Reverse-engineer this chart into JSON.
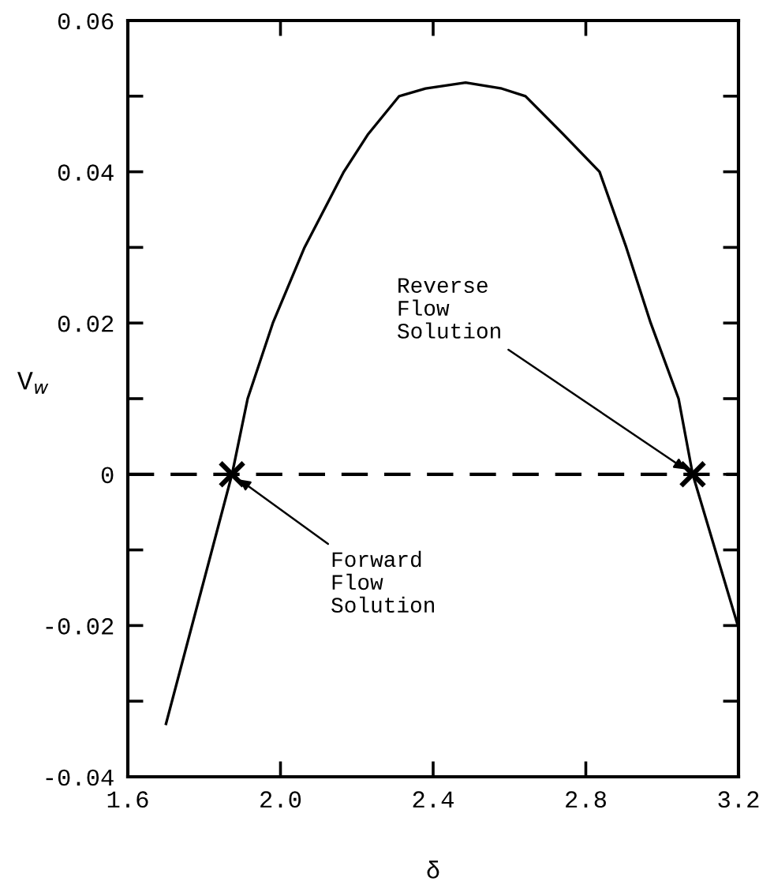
{
  "chart_data": {
    "type": "line",
    "xlabel": "δ",
    "ylabel": "V$_{w}$",
    "series": [
      {
        "color": "#000000",
        "marker": "none",
        "line_style": "solid",
        "x": [
          1.7,
          1.873,
          1.914,
          1.98,
          2.063,
          2.166,
          2.23,
          2.311,
          2.38,
          2.485,
          2.58,
          2.642,
          2.74,
          2.836,
          2.906,
          2.97,
          3.043,
          3.08,
          3.2
        ],
        "values": [
          -0.033,
          0,
          0.01,
          0.02,
          0.03,
          0.04,
          0.045,
          0.05,
          0.051,
          0.0518,
          0.051,
          0.05,
          0.045,
          0.04,
          0.03,
          0.02,
          0.01,
          0,
          -0.0203
        ]
      },
      {
        "type": "scatter",
        "color": "#000000",
        "marker": "cross",
        "x": [
          1.873,
          3.08
        ],
        "values": [
          0,
          0
        ]
      }
    ],
    "ref_lines": [
      {
        "axis": "y",
        "value": 0,
        "line_style": "dashed",
        "color": "#000000"
      }
    ],
    "annotations": [
      {
        "text": "Reverse\nFlow\nSolution",
        "x": 3.08,
        "y": 0
      },
      {
        "text": "Forward\nFlow\nSolution",
        "x": 1.873,
        "y": 0
      }
    ],
    "xlim": [
      1.6,
      3.2
    ],
    "ylim": [
      -0.04,
      0.06
    ],
    "xticks": [
      1.6,
      {
        "value": 2.0,
        "label": "2.0"
      },
      2.4,
      2.8,
      3.2
    ],
    "yticks": [
      {
        "value": -0.04,
        "label": "-0.04"
      },
      {
        "value": -0.03,
        "label": null
      },
      {
        "value": -0.02,
        "label": "-0.02"
      },
      {
        "value": -0.01,
        "label": null
      },
      0,
      {
        "value": 0.01,
        "label": null
      },
      0.02,
      {
        "value": 0.03,
        "label": null
      },
      0.04,
      {
        "value": 0.05,
        "label": null
      },
      0.06
    ],
    "grid": false,
    "legend": false
  }
}
